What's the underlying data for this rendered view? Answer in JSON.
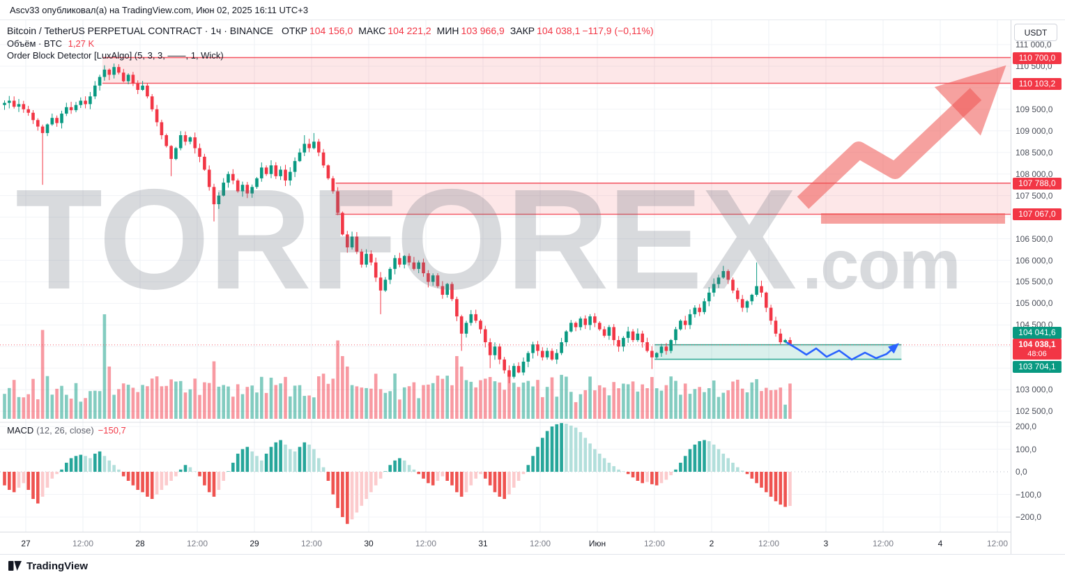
{
  "attribution": {
    "text": "Ascv33 опубликовал(а) на TradingView.com, Июн 02, 2025 16:11 UTC+3"
  },
  "header": {
    "symbol": "Bitcoin / TetherUS PERPETUAL CONTRACT · 1ч · BINANCE",
    "ohlc": [
      {
        "label": "ОТКР",
        "value": "104 156,0"
      },
      {
        "label": "МАКС",
        "value": "104 221,2"
      },
      {
        "label": "МИН",
        "value": "103 966,9"
      },
      {
        "label": "ЗАКР",
        "value": "104 038,1"
      }
    ],
    "change": "−117,9 (−0,11%)",
    "volume_label": "Объём · BTC",
    "volume_value": "1,27 K",
    "indicator": "Order Block Detector [LuxAlgo] (5, 3, 3, ——, 1, Wick)"
  },
  "macd": {
    "label": "MACD",
    "params": "(12, 26, close)",
    "value": "−150,7"
  },
  "axis": {
    "currency": "USDT"
  },
  "watermark": {
    "text": "TORFOREX",
    "suffix": ".com"
  },
  "footer": {
    "logo_text": "TradingView"
  },
  "colors": {
    "up": "#089981",
    "down": "#f23645",
    "zone_red": "#f23645",
    "zone_green": "#089981",
    "macd_pos_grow": "#26a69a",
    "macd_pos_fall": "#b2dfdb",
    "macd_neg_fall": "#ef5350",
    "macd_neg_rise": "#fccbcd",
    "drawing_arrow": "#2962ff"
  },
  "chart_data": {
    "type": "candlestick",
    "timeframe": "1h",
    "panes": [
      "price+volume",
      "macd"
    ],
    "x_ticks": [
      "27",
      "12:00",
      "28",
      "12:00",
      "29",
      "12:00",
      "30",
      "12:00",
      "31",
      "12:00",
      "Июн",
      "12:00",
      "2",
      "12:00",
      "3",
      "12:00",
      "4",
      "12:00"
    ],
    "y_ticks": [
      111000,
      110500,
      109500,
      109000,
      108500,
      108000,
      107500,
      106500,
      106000,
      105500,
      105000,
      104500,
      103000,
      102500
    ],
    "macd_ticks": [
      200,
      100,
      0,
      -100,
      -200
    ],
    "price_range_visible": [
      102300,
      111200
    ],
    "first_open": 109600,
    "closes": [
      109650,
      109700,
      109560,
      109620,
      109500,
      109420,
      109250,
      109100,
      108950,
      109150,
      109300,
      109180,
      109400,
      109550,
      109480,
      109600,
      109700,
      109620,
      109800,
      110050,
      110250,
      110420,
      110300,
      110480,
      110350,
      110150,
      110300,
      110100,
      109950,
      110050,
      109800,
      109500,
      109200,
      108900,
      108650,
      108350,
      108600,
      108900,
      108750,
      108850,
      108600,
      108400,
      108100,
      107700,
      107300,
      107500,
      107800,
      108000,
      107850,
      107600,
      107750,
      107550,
      107700,
      107900,
      108150,
      108000,
      108200,
      107950,
      108100,
      107850,
      108050,
      108300,
      108500,
      108700,
      108600,
      108750,
      108500,
      108200,
      107900,
      107600,
      107100,
      106600,
      106300,
      106550,
      106200,
      105900,
      106150,
      105950,
      105600,
      105300,
      105550,
      105800,
      106050,
      105900,
      106100,
      105950,
      105800,
      105950,
      105700,
      105500,
      105650,
      105400,
      105200,
      105450,
      105100,
      104700,
      104300,
      104550,
      104750,
      104600,
      104400,
      104100,
      103800,
      104000,
      103700,
      103450,
      103300,
      103550,
      103400,
      103650,
      103850,
      104050,
      103900,
      103750,
      103900,
      103700,
      103850,
      104100,
      104350,
      104550,
      104450,
      104650,
      104500,
      104700,
      104550,
      104400,
      104250,
      104450,
      104150,
      104000,
      104200,
      104350,
      104150,
      104300,
      104100,
      103900,
      103750,
      103850,
      104000,
      103900,
      104150,
      104400,
      104600,
      104500,
      104750,
      104900,
      104800,
      105050,
      105250,
      105450,
      105600,
      105750,
      105550,
      105300,
      105100,
      104900,
      105050,
      105200,
      105400,
      105250,
      104900,
      104600,
      104300,
      104100,
      104150,
      104038.1
    ],
    "wick_overrides": {
      "8": {
        "low": 107750
      },
      "21": {
        "high": 110520
      },
      "23": {
        "high": 110560
      },
      "35": {
        "low": 107950
      },
      "44": {
        "low": 106900
      },
      "63": {
        "high": 108900
      },
      "65": {
        "high": 108950
      },
      "79": {
        "low": 104750
      },
      "96": {
        "low": 103900
      },
      "102": {
        "low": 103500
      },
      "106": {
        "low": 103150
      },
      "136": {
        "low": 103480
      },
      "151": {
        "high": 105870
      },
      "158": {
        "high": 105950
      }
    },
    "volume_spikes": {
      "8": 0.85,
      "21": 1.0,
      "22": 0.5,
      "44": 0.55,
      "70": 0.75,
      "71": 0.6,
      "72": 0.5,
      "95": 0.6,
      "96": 0.5,
      "102": 0.4,
      "106": 0.45,
      "136": 0.4
    },
    "macd_hist": [
      -60,
      -80,
      -90,
      -70,
      -50,
      -80,
      -120,
      -140,
      -110,
      -70,
      -30,
      -10,
      10,
      40,
      60,
      70,
      75,
      70,
      60,
      80,
      90,
      70,
      50,
      30,
      10,
      -20,
      -40,
      -60,
      -80,
      -90,
      -110,
      -120,
      -100,
      -80,
      -60,
      -40,
      -20,
      10,
      30,
      20,
      0,
      -20,
      -60,
      -90,
      -110,
      -80,
      -40,
      0,
      40,
      80,
      100,
      110,
      90,
      70,
      50,
      80,
      110,
      130,
      140,
      120,
      100,
      90,
      110,
      130,
      120,
      100,
      60,
      20,
      -40,
      -100,
      -160,
      -200,
      -230,
      -210,
      -180,
      -150,
      -120,
      -90,
      -60,
      -30,
      0,
      30,
      50,
      60,
      50,
      30,
      10,
      -10,
      -30,
      -50,
      -60,
      -40,
      -20,
      -40,
      -60,
      -90,
      -110,
      -90,
      -60,
      -30,
      -10,
      -30,
      -60,
      -90,
      -110,
      -120,
      -100,
      -70,
      -40,
      -10,
      30,
      70,
      110,
      150,
      180,
      200,
      210,
      215,
      212,
      204,
      195,
      175,
      150,
      125,
      100,
      80,
      60,
      40,
      25,
      10,
      0,
      -10,
      -25,
      -40,
      -50,
      -45,
      -55,
      -60,
      -50,
      -35,
      -15,
      10,
      40,
      70,
      100,
      120,
      135,
      140,
      135,
      120,
      100,
      80,
      60,
      40,
      20,
      5,
      -10,
      -30,
      -50,
      -70,
      -90,
      -110,
      -130,
      -145,
      -155,
      -150.7
    ],
    "macd_last": -150.7,
    "zones": [
      {
        "type": "resistance",
        "top": 110700.0,
        "bottom": 110103.2,
        "start_index": 21,
        "color": "#f23645"
      },
      {
        "type": "resistance",
        "top": 107788.0,
        "bottom": 107067.0,
        "start_index": 70,
        "color": "#f23645"
      },
      {
        "type": "support",
        "top": 104041.6,
        "bottom": 103704.1,
        "start_index": 137,
        "end_x_frac": 0.892,
        "color": "#089981"
      }
    ],
    "current_price": 104038.1,
    "countdown": "48:06"
  }
}
